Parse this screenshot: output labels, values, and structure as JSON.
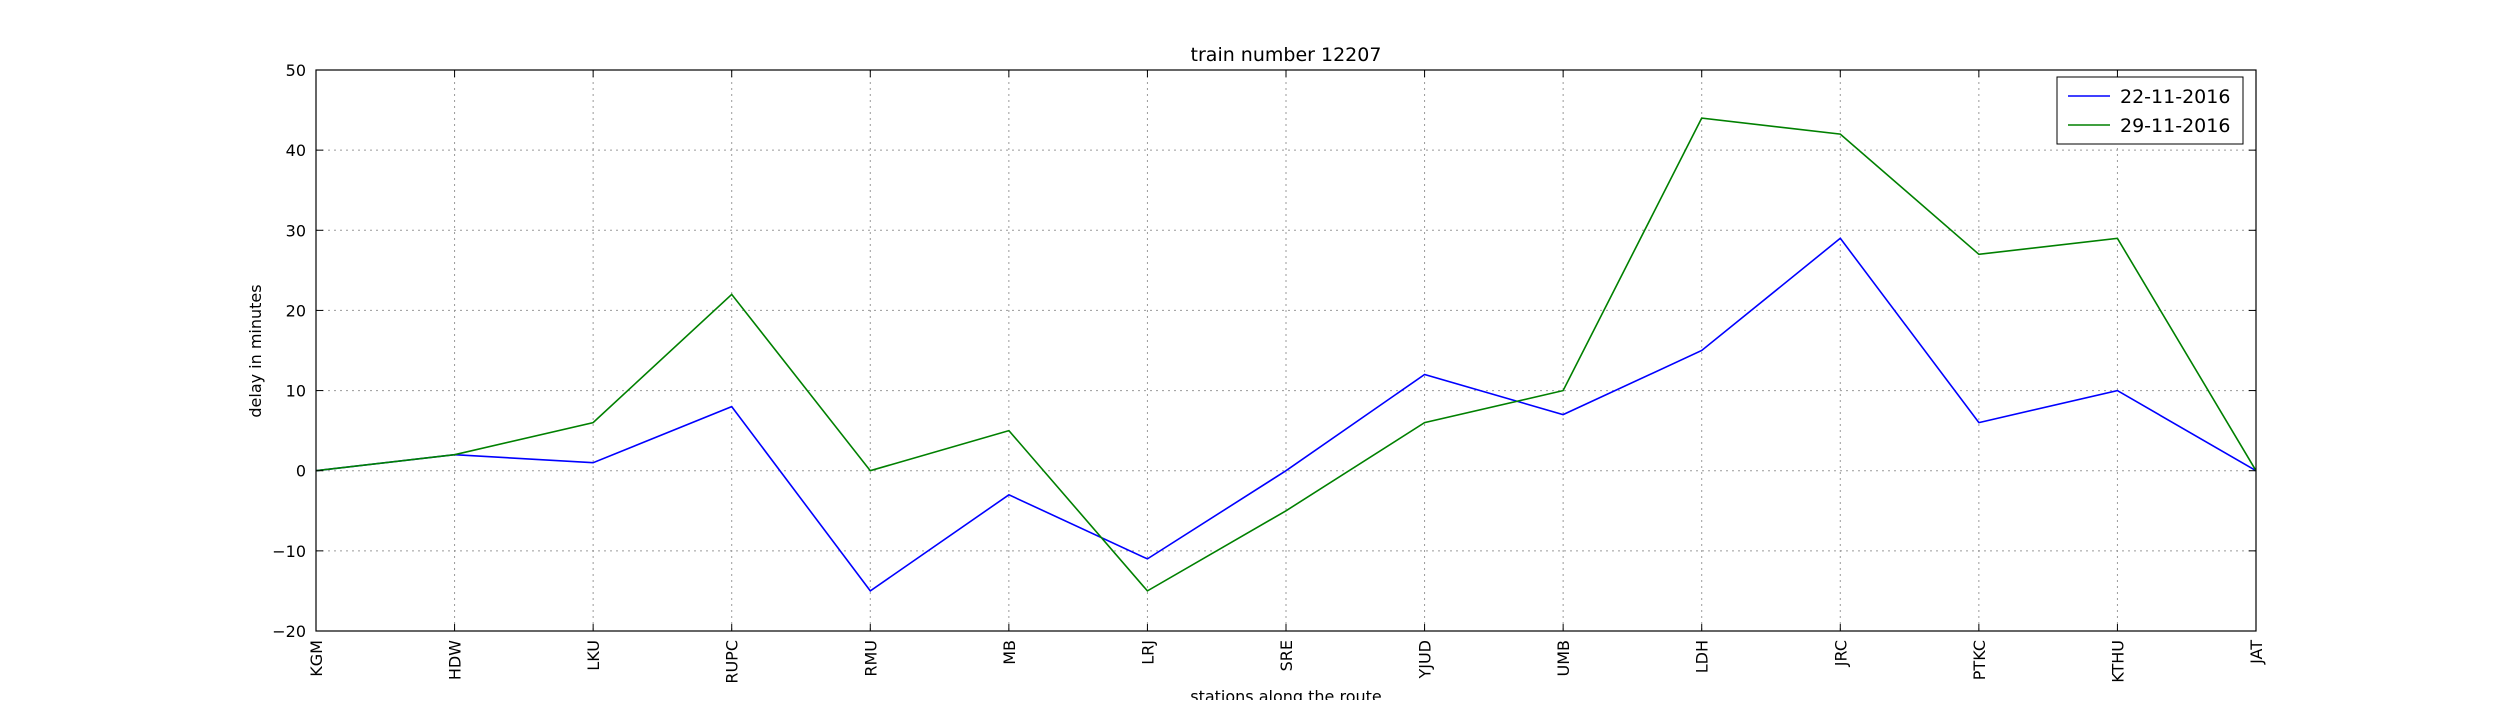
{
  "chart_data": {
    "type": "line",
    "title": "train number 12207",
    "xlabel": "stations along the route",
    "ylabel": "delay in minutes",
    "categories": [
      "KGM",
      "HDW",
      "LKU",
      "RUPC",
      "RMU",
      "MB",
      "LRJ",
      "SRE",
      "YJUD",
      "UMB",
      "LDH",
      "JRC",
      "PTKC",
      "KTHU",
      "JAT"
    ],
    "series": [
      {
        "name": "22-11-2016",
        "color": "#0000ff",
        "values": [
          0,
          2,
          1,
          8,
          -15,
          -3,
          -11,
          0,
          12,
          7,
          15,
          29,
          6,
          10,
          0
        ]
      },
      {
        "name": "29-11-2016",
        "color": "#008000",
        "values": [
          0,
          2,
          6,
          22,
          0,
          5,
          -15,
          -5,
          6,
          10,
          44,
          42,
          27,
          29,
          0
        ]
      }
    ],
    "ylim": [
      -20,
      50
    ],
    "yticks": [
      "−20",
      "−10",
      "0",
      "10",
      "20",
      "30",
      "40",
      "50"
    ],
    "grid": true,
    "legend_position": "top-right"
  }
}
